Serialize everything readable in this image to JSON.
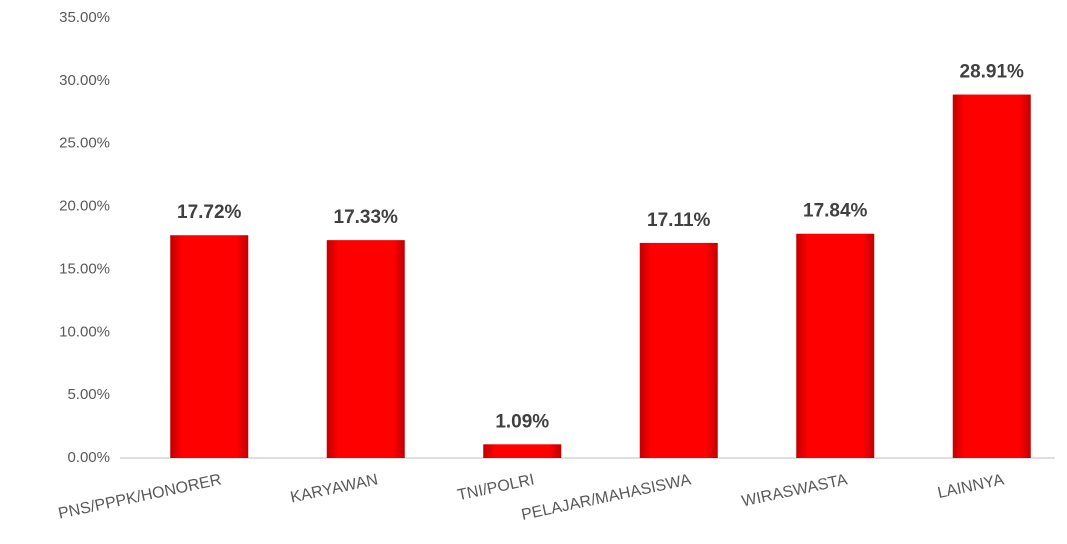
{
  "chart_data": {
    "type": "bar",
    "categories": [
      "PNS/PPPK/HONORER",
      "KARYAWAN",
      "TNI/POLRI",
      "PELAJAR/MAHASISWA",
      "WIRASWASTA",
      "LAINNYA"
    ],
    "values": [
      17.72,
      17.33,
      1.09,
      17.11,
      17.84,
      28.91
    ],
    "value_labels": [
      "17.72%",
      "17.33%",
      "1.09%",
      "17.11%",
      "17.84%",
      "28.91%"
    ],
    "color": "#ff0000",
    "ylim": [
      0,
      35
    ],
    "yticks": [
      {
        "value": 0,
        "label": "0.00%"
      },
      {
        "value": 5,
        "label": "5.00%"
      },
      {
        "value": 10,
        "label": "10.00%"
      },
      {
        "value": 15,
        "label": "15.00%"
      },
      {
        "value": 20,
        "label": "20.00%"
      },
      {
        "value": 25,
        "label": "25.00%"
      },
      {
        "value": 30,
        "label": "30.00%"
      },
      {
        "value": 35,
        "label": "35.00%"
      }
    ],
    "grid": false
  }
}
